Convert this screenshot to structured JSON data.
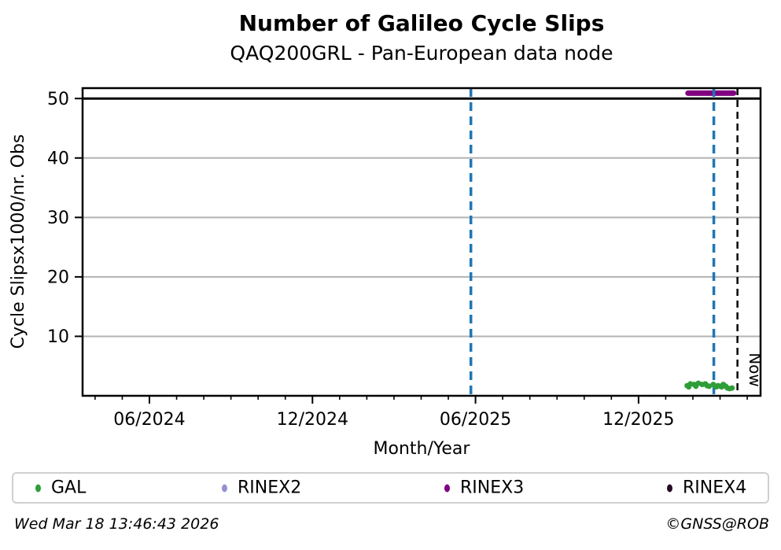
{
  "chart_data": {
    "type": "scatter",
    "title": "Number of Galileo Cycle Slips",
    "subtitle": "QAQ200GRL - Pan-European data node",
    "xlabel": "Month/Year",
    "ylabel": "Cycle Slipsx1000/nr. Obs",
    "x_unit_note": "x values are months since Jan 2024 (Jan 2024 = 0)",
    "xlim": [
      2.54,
      27.49
    ],
    "ylim": [
      0,
      51.75
    ],
    "x_major_ticks": [
      {
        "x": 5,
        "label": "06/2024"
      },
      {
        "x": 11,
        "label": "12/2024"
      },
      {
        "x": 17,
        "label": "06/2025"
      },
      {
        "x": 23,
        "label": "12/2025"
      }
    ],
    "x_minor_ticks": [
      3,
      4,
      6,
      7,
      8,
      9,
      10,
      12,
      13,
      14,
      15,
      16,
      18,
      19,
      20,
      21,
      22,
      24,
      25,
      26,
      27
    ],
    "y_ticks": [
      {
        "v": 10,
        "label": "10"
      },
      {
        "v": 20,
        "label": "20"
      },
      {
        "v": 30,
        "label": "30"
      },
      {
        "v": 40,
        "label": "40"
      },
      {
        "v": 50,
        "label": "50"
      }
    ],
    "y_gridlines": [
      10,
      20,
      30,
      40
    ],
    "grid_color": "#b3b3b3",
    "threshold_line": {
      "y": 50,
      "color": "#000000",
      "width": 3
    },
    "series": [
      {
        "name": "GAL",
        "color": "#2e9e38",
        "marker": "circle",
        "points": [
          [
            24.79,
            1.7
          ],
          [
            24.85,
            1.5
          ],
          [
            24.91,
            2.0
          ],
          [
            25.05,
            1.9
          ],
          [
            25.11,
            1.6
          ],
          [
            25.2,
            2.1
          ],
          [
            25.34,
            1.9
          ],
          [
            25.46,
            2.0
          ],
          [
            25.52,
            1.7
          ],
          [
            25.6,
            1.6
          ],
          [
            25.75,
            1.9
          ],
          [
            25.86,
            1.5
          ],
          [
            25.92,
            1.7
          ],
          [
            26.01,
            1.6
          ],
          [
            26.06,
            1.5
          ],
          [
            26.12,
            1.9
          ],
          [
            26.21,
            1.6
          ],
          [
            26.27,
            1.3
          ],
          [
            26.35,
            1.2
          ],
          [
            26.44,
            1.3
          ]
        ]
      },
      {
        "name": "RINEX2",
        "color": "#9393d2",
        "marker": "circle",
        "points": []
      },
      {
        "name": "RINEX3",
        "color": "#800080",
        "marker": "circle",
        "points": [],
        "segment": {
          "x_start": 24.82,
          "x_end": 26.5,
          "y": 50.9
        }
      },
      {
        "name": "RINEX4",
        "color": "#260b26",
        "marker": "circle",
        "points": []
      }
    ],
    "vlines": [
      {
        "x": 16.83,
        "color": "#1f77b4",
        "dash": "11 7",
        "width": 3.5,
        "name": "event-line-1"
      },
      {
        "x": 25.77,
        "color": "#1f77b4",
        "dash": "11 7",
        "width": 3.5,
        "name": "event-line-2"
      },
      {
        "x": 26.64,
        "color": "#000000",
        "dash": "9 6",
        "width": 2.5,
        "name": "now-line"
      }
    ],
    "now_label": "Now",
    "legend_position": "bottom",
    "grid": "horizontal-only"
  },
  "legend": {
    "items": [
      {
        "label": "GAL",
        "color": "#2e9e38"
      },
      {
        "label": "RINEX2",
        "color": "#9393d2"
      },
      {
        "label": "RINEX3",
        "color": "#800080"
      },
      {
        "label": "RINEX4",
        "color": "#260b26"
      }
    ]
  },
  "footer": {
    "timestamp": "Wed Mar 18 13:46:43 2026",
    "credit": "©GNSS@ROB"
  }
}
